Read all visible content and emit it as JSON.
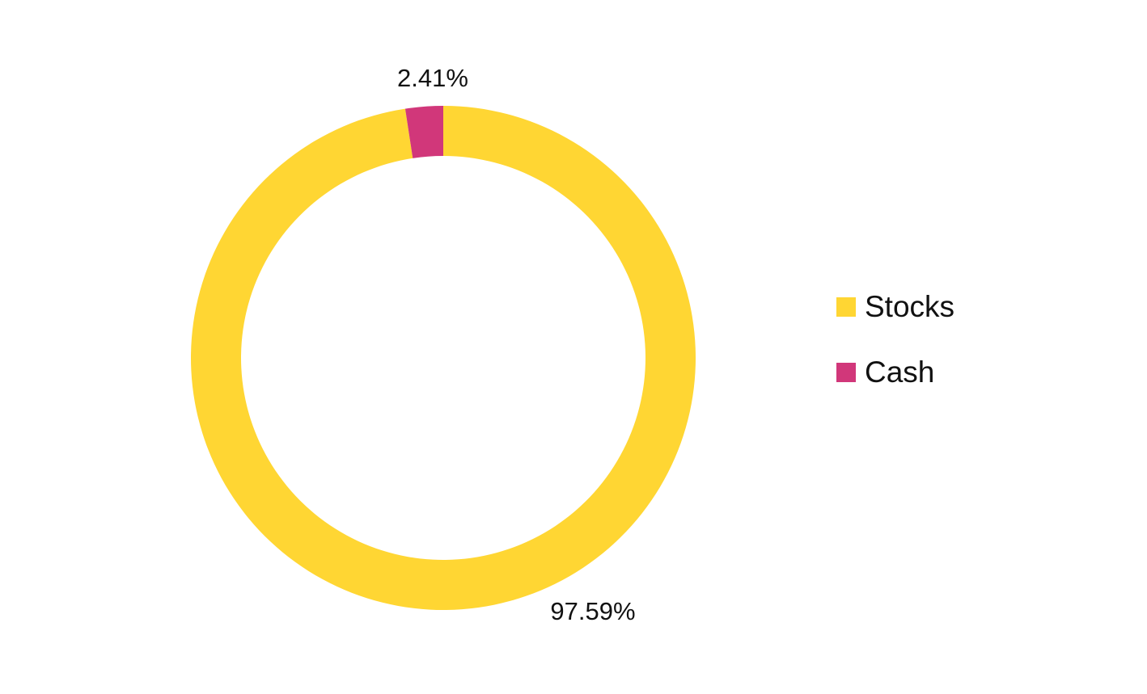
{
  "chart_data": {
    "type": "pie",
    "variant": "donut",
    "title": "",
    "categories": [
      "Stocks",
      "Cash"
    ],
    "values": [
      97.59,
      2.41
    ],
    "unit": "%",
    "data_labels": [
      "97.59%",
      "2.41%"
    ],
    "colors": [
      "#FFD633",
      "#D1377A"
    ],
    "legend_position": "right"
  },
  "legend": {
    "items": [
      {
        "label": "Stocks",
        "color": "#FFD633"
      },
      {
        "label": "Cash",
        "color": "#D1377A"
      }
    ]
  }
}
